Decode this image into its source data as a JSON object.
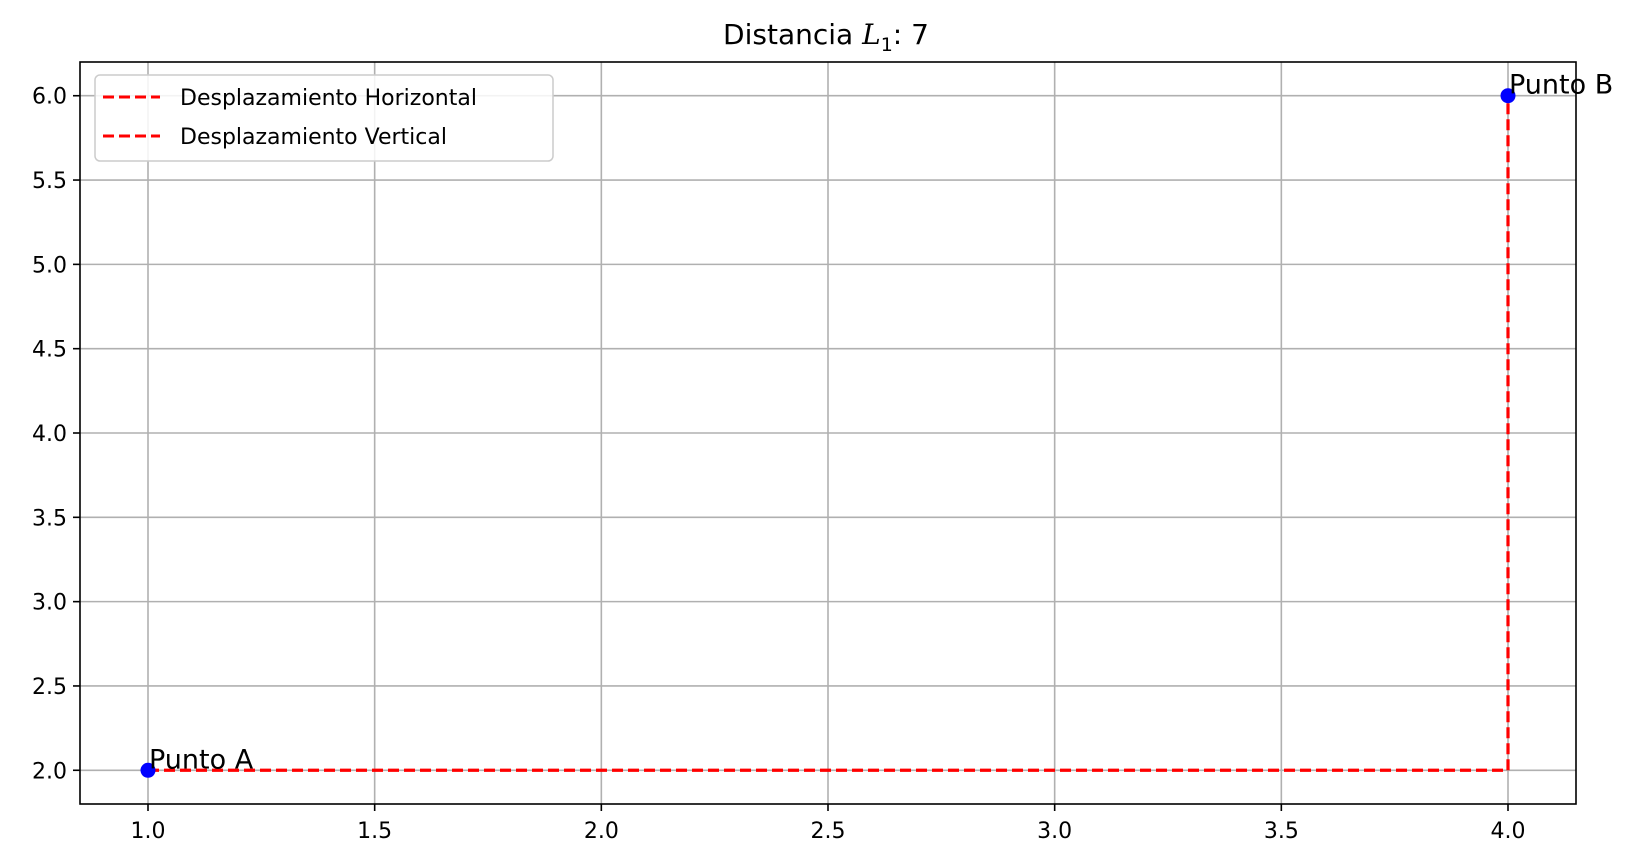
{
  "chart_data": {
    "type": "line",
    "title_prefix": "Distancia ",
    "title_math_main": "L",
    "title_math_sub": "1",
    "title_suffix": ": 7",
    "xlabel": "",
    "ylabel": "",
    "xlim": [
      0.85,
      4.15
    ],
    "ylim": [
      1.8,
      6.2
    ],
    "x_ticks": [
      1.0,
      1.5,
      2.0,
      2.5,
      3.0,
      3.5,
      4.0
    ],
    "x_tick_labels": [
      "1.0",
      "1.5",
      "2.0",
      "2.5",
      "3.0",
      "3.5",
      "4.0"
    ],
    "y_ticks": [
      2.0,
      2.5,
      3.0,
      3.5,
      4.0,
      4.5,
      5.0,
      5.5,
      6.0
    ],
    "y_tick_labels": [
      "2.0",
      "2.5",
      "3.0",
      "3.5",
      "4.0",
      "4.5",
      "5.0",
      "5.5",
      "6.0"
    ],
    "grid": true,
    "legend_position": "top-left",
    "series": [
      {
        "name": "Desplazamiento Horizontal",
        "style": "dashed",
        "color": "#ff0000",
        "x": [
          1,
          4
        ],
        "y": [
          2,
          2
        ]
      },
      {
        "name": "Desplazamiento Vertical",
        "style": "dashed",
        "color": "#ff0000",
        "x": [
          4,
          4
        ],
        "y": [
          2,
          6
        ]
      }
    ],
    "points": [
      {
        "label": "Punto A",
        "x": 1,
        "y": 2,
        "color": "#0000ff"
      },
      {
        "label": "Punto B",
        "x": 4,
        "y": 6,
        "color": "#0000ff"
      }
    ]
  }
}
